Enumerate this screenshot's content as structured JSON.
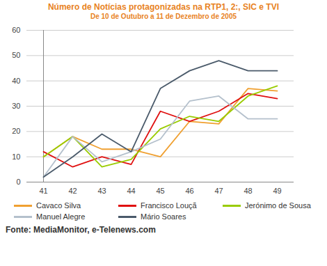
{
  "chart_data": {
    "type": "line",
    "title": "Número de Notícias protagonizadas na RTP1, 2:, SIC e TVI",
    "subtitle": "De 10 de Outubro a 11 de Dezembro de 2005",
    "caption": "Fonte: MediaMonitor, e-Telenews.com",
    "categories": [
      "41",
      "42",
      "43",
      "44",
      "45",
      "46",
      "47",
      "48",
      "49"
    ],
    "series": [
      {
        "name": "Cavaco Silva",
        "color": "#f0a030",
        "values": [
          10,
          18,
          13,
          13,
          10,
          24,
          23,
          37,
          36
        ]
      },
      {
        "name": "Francisco Louçã",
        "color": "#e01010",
        "values": [
          12,
          6,
          10,
          7,
          28,
          24,
          28,
          35,
          33
        ]
      },
      {
        "name": "Jerónimo de Sousa",
        "color": "#99cc00",
        "values": [
          10,
          18,
          6,
          9,
          21,
          26,
          24,
          34,
          38
        ]
      },
      {
        "name": "Manuel Alegre",
        "color": "#b4c0cc",
        "values": [
          2,
          18,
          8,
          12,
          17,
          32,
          34,
          25,
          25
        ]
      },
      {
        "name": "Mário Soares",
        "color": "#4a5a6a",
        "values": [
          2,
          10,
          19,
          12,
          37,
          44,
          48,
          44,
          44
        ]
      }
    ],
    "ylim": [
      0,
      60
    ],
    "yticks": [
      0,
      10,
      20,
      30,
      40,
      50,
      60
    ],
    "grid": true,
    "legend": "bottom"
  }
}
